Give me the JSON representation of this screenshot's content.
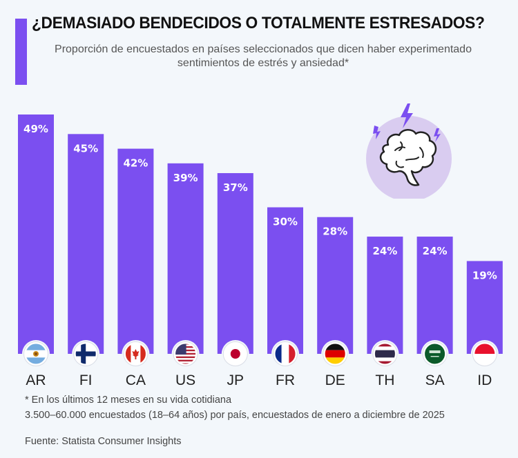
{
  "header": {
    "title": "¿DEMASIADO BENDECIDOS O TOTALMENTE ESTRESADOS?",
    "subtitle": "Proporción de encuestados en países seleccionados que dicen haber experimentado sentimientos de estrés y ansiedad*"
  },
  "colors": {
    "accent": "#7b4ff0",
    "bar": "#7b4ff0",
    "illustration_circle": "#d9ccf0",
    "background": "#f3f7fb"
  },
  "illustration": {
    "icon": "brain-stress-icon"
  },
  "chart_data": {
    "type": "bar",
    "title": "¿DEMASIADO BENDECIDOS O TOTALMENTE ESTRESADOS?",
    "subtitle": "Proporción de encuestados en países seleccionados que dicen haber experimentado sentimientos de estrés y ansiedad*",
    "categories": [
      "AR",
      "FI",
      "CA",
      "US",
      "JP",
      "FR",
      "DE",
      "TH",
      "SA",
      "ID"
    ],
    "flags": [
      "argentina-flag-icon",
      "finland-flag-icon",
      "canada-flag-icon",
      "usa-flag-icon",
      "japan-flag-icon",
      "france-flag-icon",
      "germany-flag-icon",
      "thailand-flag-icon",
      "saudi-arabia-flag-icon",
      "indonesia-flag-icon"
    ],
    "values": [
      49,
      45,
      42,
      39,
      37,
      30,
      28,
      24,
      24,
      19
    ],
    "value_labels": [
      "49%",
      "45%",
      "42%",
      "39%",
      "37%",
      "30%",
      "28%",
      "24%",
      "24%",
      "19%"
    ],
    "unit": "%",
    "xlabel": "",
    "ylabel": "",
    "ylim": [
      0,
      49
    ],
    "grid": false,
    "legend": "none"
  },
  "footer": {
    "note": "* En los últimos 12 meses en su vida cotidiana",
    "sample": "3.500–60.000 encuestados (18–64 años) por país, encuestados de enero a diciembre de 2025",
    "source": "Fuente: Statista Consumer Insights"
  }
}
